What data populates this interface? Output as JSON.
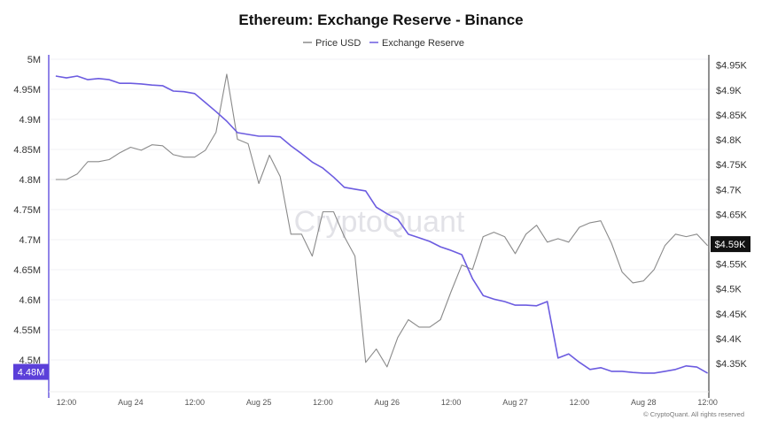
{
  "chart_data": {
    "type": "line",
    "title": "Ethereum: Exchange Reserve - Binance",
    "legend": {
      "placement": "top-center"
    },
    "grid": {
      "horizontal": true,
      "vertical": false
    },
    "x": [
      "Aug 23 10:00",
      "Aug 23 12:00",
      "Aug 23 14:00",
      "Aug 23 16:00",
      "Aug 23 18:00",
      "Aug 23 20:00",
      "Aug 23 22:00",
      "Aug 24 00:00",
      "Aug 24 02:00",
      "Aug 24 04:00",
      "Aug 24 06:00",
      "Aug 24 08:00",
      "Aug 24 10:00",
      "Aug 24 12:00",
      "Aug 24 14:00",
      "Aug 24 16:00",
      "Aug 24 18:00",
      "Aug 24 20:00",
      "Aug 24 22:00",
      "Aug 25 00:00",
      "Aug 25 02:00",
      "Aug 25 04:00",
      "Aug 25 06:00",
      "Aug 25 08:00",
      "Aug 25 10:00",
      "Aug 25 12:00",
      "Aug 25 14:00",
      "Aug 25 16:00",
      "Aug 25 18:00",
      "Aug 25 20:00",
      "Aug 25 22:00",
      "Aug 26 00:00",
      "Aug 26 02:00",
      "Aug 26 04:00",
      "Aug 26 06:00",
      "Aug 26 08:00",
      "Aug 26 10:00",
      "Aug 26 12:00",
      "Aug 26 14:00",
      "Aug 26 16:00",
      "Aug 26 18:00",
      "Aug 26 20:00",
      "Aug 26 22:00",
      "Aug 27 00:00",
      "Aug 27 02:00",
      "Aug 27 04:00",
      "Aug 27 06:00",
      "Aug 27 08:00",
      "Aug 27 10:00",
      "Aug 27 12:00",
      "Aug 27 14:00",
      "Aug 27 16:00",
      "Aug 27 18:00",
      "Aug 27 20:00",
      "Aug 27 22:00",
      "Aug 28 00:00",
      "Aug 28 02:00",
      "Aug 28 04:00",
      "Aug 28 06:00",
      "Aug 28 08:00",
      "Aug 28 10:00",
      "Aug 28 12:00"
    ],
    "series": [
      {
        "name": "Price USD",
        "axis": "right",
        "color": "#8a8a8a",
        "values": [
          4720,
          4720,
          4731,
          4756,
          4756,
          4760,
          4774,
          4785,
          4779,
          4790,
          4788,
          4770,
          4765,
          4765,
          4779,
          4815,
          4932,
          4801,
          4792,
          4712,
          4769,
          4726,
          4610,
          4610,
          4566,
          4655,
          4655,
          4605,
          4566,
          4352,
          4379,
          4343,
          4402,
          4438,
          4423,
          4423,
          4438,
          4495,
          4548,
          4539,
          4605,
          4614,
          4605,
          4571,
          4610,
          4628,
          4594,
          4601,
          4594,
          4624,
          4633,
          4637,
          4592,
          4534,
          4512,
          4516,
          4539,
          4587,
          4610,
          4605,
          4610,
          4587
        ]
      },
      {
        "name": "Exchange Reserve",
        "axis": "left",
        "color": "#6c5ce0",
        "values": [
          4.972,
          4.969,
          4.972,
          4.966,
          4.968,
          4.966,
          4.96,
          4.96,
          4.959,
          4.957,
          4.956,
          4.947,
          4.946,
          4.943,
          4.928,
          4.913,
          4.897,
          4.878,
          4.875,
          4.872,
          4.872,
          4.871,
          4.856,
          4.843,
          4.829,
          4.819,
          4.804,
          4.787,
          4.784,
          4.781,
          4.754,
          4.743,
          4.734,
          4.709,
          4.703,
          4.697,
          4.688,
          4.682,
          4.675,
          4.635,
          4.607,
          4.601,
          4.597,
          4.591,
          4.591,
          4.59,
          4.597,
          4.503,
          4.51,
          4.496,
          4.484,
          4.487,
          4.481,
          4.481,
          4.479,
          4.478,
          4.478,
          4.481,
          4.484,
          4.49,
          4.488,
          4.478
        ]
      }
    ],
    "left_axis": {
      "unit": "M",
      "ylim": [
        4.447,
        5.0
      ],
      "ticks": [
        "5M",
        "4.95M",
        "4.9M",
        "4.85M",
        "4.8M",
        "4.75M",
        "4.7M",
        "4.65M",
        "4.6M",
        "4.55M",
        "4.5M"
      ],
      "tick_values": [
        5,
        4.95,
        4.9,
        4.85,
        4.8,
        4.75,
        4.7,
        4.65,
        4.6,
        4.55,
        4.5
      ],
      "current_label": "4.48M",
      "current_value": 4.48,
      "current_color": "#5b3fd9"
    },
    "right_axis": {
      "ylim": [
        4293,
        4962
      ],
      "ticks": [
        "$4.95K",
        "$4.9K",
        "$4.85K",
        "$4.8K",
        "$4.75K",
        "$4.7K",
        "$4.65K",
        "$4.55K",
        "$4.5K",
        "$4.45K",
        "$4.4K",
        "$4.35K"
      ],
      "tick_values": [
        4950,
        4900,
        4850,
        4800,
        4750,
        4700,
        4650,
        4550,
        4500,
        4450,
        4400,
        4350
      ],
      "current_label": "$4.59K",
      "current_value": 4590,
      "current_color": "#111111"
    },
    "x_ticks": [
      {
        "label": "12:00",
        "at": "Aug 23 12:00"
      },
      {
        "label": "Aug 24",
        "at": "Aug 24 00:00"
      },
      {
        "label": "12:00",
        "at": "Aug 24 12:00"
      },
      {
        "label": "Aug 25",
        "at": "Aug 25 00:00"
      },
      {
        "label": "12:00",
        "at": "Aug 25 12:00"
      },
      {
        "label": "Aug 26",
        "at": "Aug 26 00:00"
      },
      {
        "label": "12:00",
        "at": "Aug 26 12:00"
      },
      {
        "label": "Aug 27",
        "at": "Aug 27 00:00"
      },
      {
        "label": "12:00",
        "at": "Aug 27 12:00"
      },
      {
        "label": "Aug 28",
        "at": "Aug 28 00:00"
      },
      {
        "label": "12:00",
        "at": "Aug 28 12:00"
      }
    ]
  },
  "watermark": "CryptoQuant",
  "copyright": "© CryptoQuant. All rights reserved"
}
